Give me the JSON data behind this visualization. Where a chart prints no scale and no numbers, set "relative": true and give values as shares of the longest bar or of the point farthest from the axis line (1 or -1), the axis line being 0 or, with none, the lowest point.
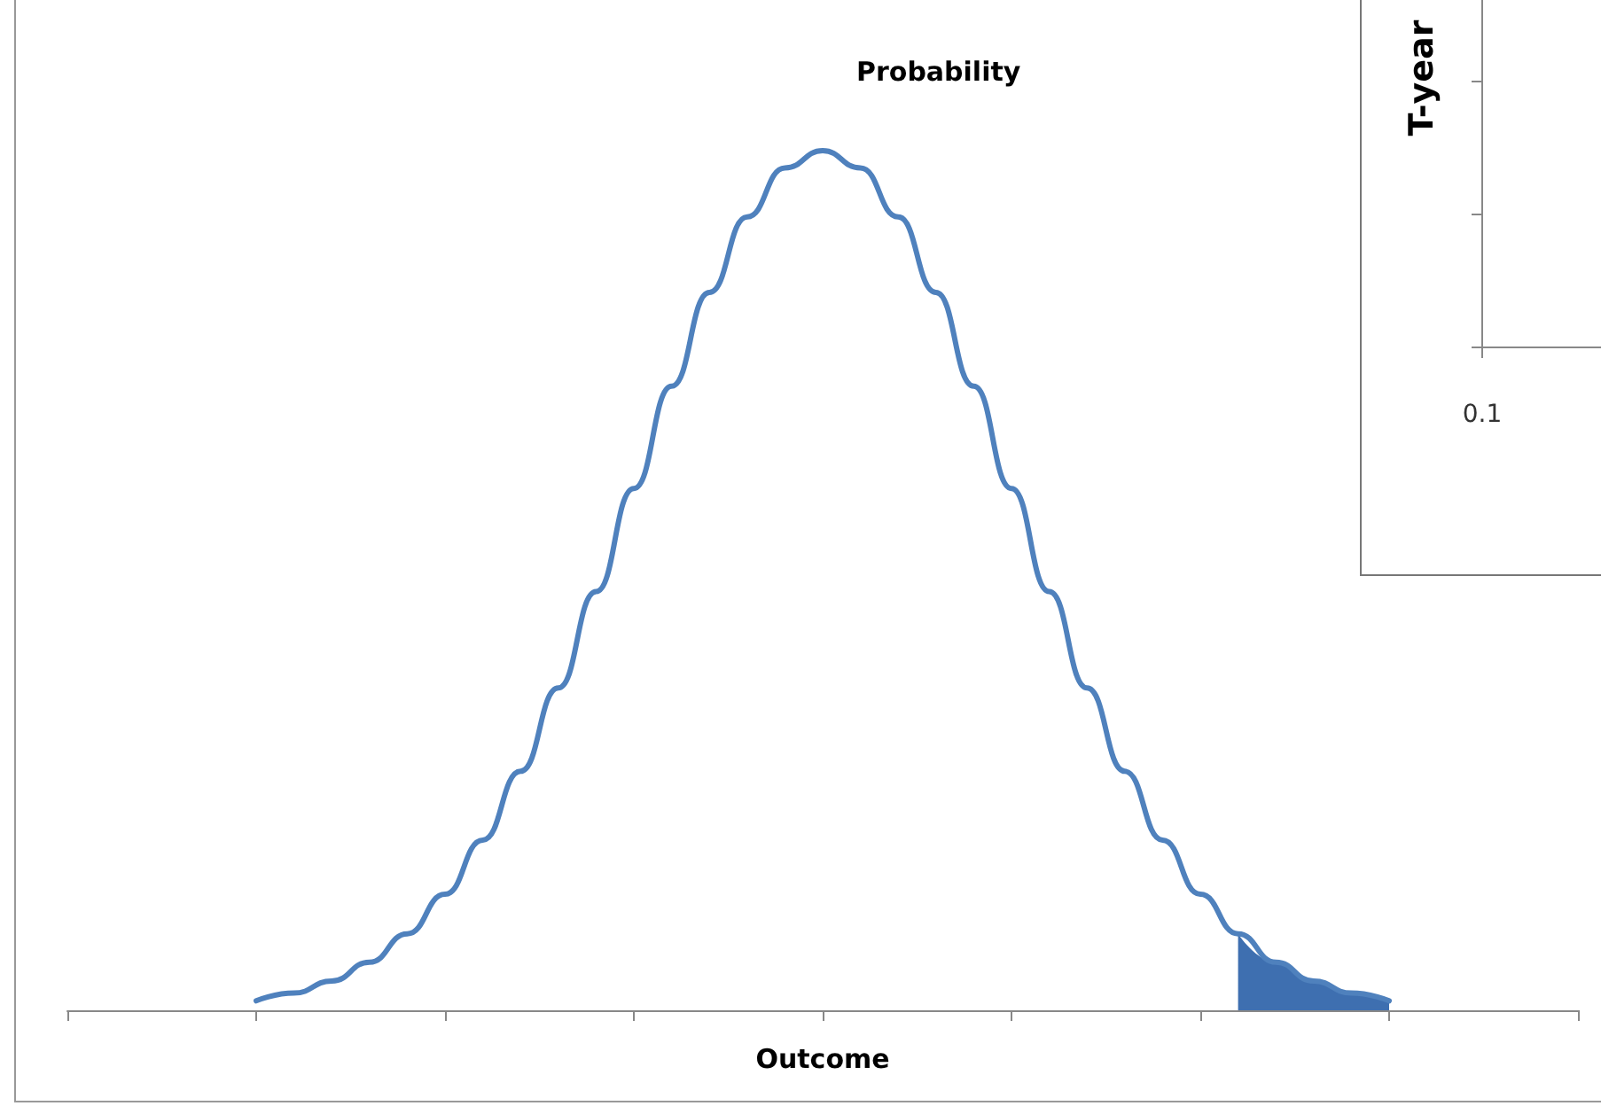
{
  "chart_data": [
    {
      "type": "line",
      "relative": true,
      "xlabel": "Outcome",
      "ylabel": "Probability",
      "categories": [
        null,
        null,
        null,
        null,
        null,
        null,
        null,
        null,
        null,
        null,
        null,
        null,
        null,
        null,
        null,
        null,
        null,
        null,
        null,
        null,
        null,
        null,
        null,
        null,
        null,
        null,
        null,
        null,
        null,
        null,
        null,
        null,
        null,
        null,
        null,
        null,
        null,
        null,
        null,
        null,
        null
      ],
      "series": [
        {
          "color": "#4f81bd",
          "values": [
            null,
            null,
            null,
            null,
            null,
            0.011,
            0.02,
            0.034,
            0.056,
            0.089,
            0.135,
            0.198,
            0.278,
            0.375,
            0.487,
            0.607,
            0.726,
            0.835,
            0.923,
            0.98,
            1,
            0.98,
            0.923,
            0.835,
            0.726,
            0.607,
            0.487,
            0.375,
            0.278,
            0.198,
            0.135,
            0.089,
            0.056,
            0.034,
            0.02,
            0.011,
            null,
            null,
            null,
            null,
            null
          ]
        },
        {
          "type": "area",
          "color": "#3e6fb0",
          "values": [
            null,
            null,
            null,
            null,
            null,
            null,
            null,
            null,
            null,
            null,
            null,
            null,
            null,
            null,
            null,
            null,
            null,
            null,
            null,
            null,
            null,
            null,
            null,
            null,
            null,
            null,
            null,
            null,
            null,
            null,
            null,
            0.089,
            0.056,
            0.034,
            0.02,
            0.011,
            null,
            null,
            null,
            null,
            null
          ]
        }
      ],
      "grid": false,
      "marker": "none"
    },
    {
      "type": "other",
      "ylabel": "T-year",
      "annotations": [
        "0.1"
      ]
    }
  ]
}
